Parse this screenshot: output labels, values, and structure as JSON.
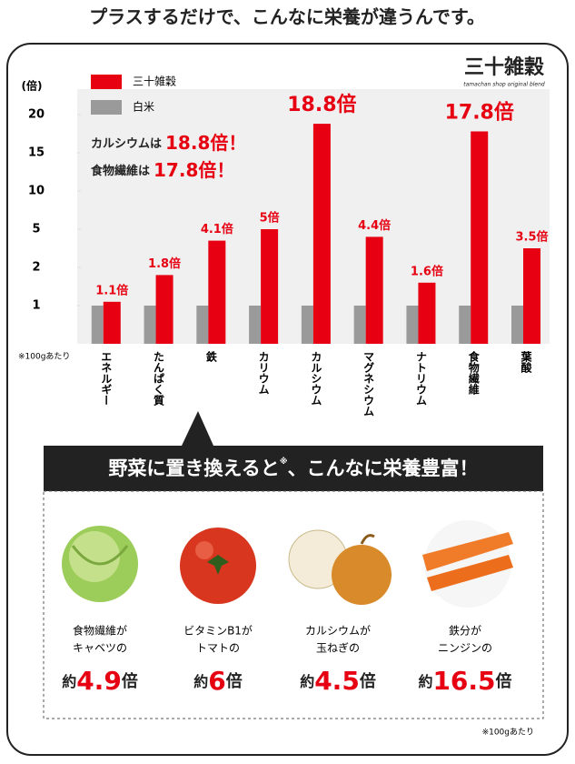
{
  "title": "プラスするだけで、こんなに栄養が違うんです。",
  "logo": {
    "name": "三十雑穀",
    "tagline": "tamachan shop original blend"
  },
  "chart_data": {
    "type": "bar",
    "y_label": "(倍)",
    "categories": [
      "エネルギー",
      "たんぱく質",
      "鉄",
      "カリウム",
      "カルシウム",
      "マグネシウム",
      "ナトリウム",
      "食物繊維",
      "葉酸"
    ],
    "series": [
      {
        "name": "三十雑穀",
        "color": "#e60012",
        "values": [
          1.1,
          1.8,
          4.1,
          5,
          18.8,
          4.4,
          1.6,
          17.8,
          3.5
        ],
        "value_labels": [
          "1.1倍",
          "1.8倍",
          "4.1倍",
          "5倍",
          "18.8倍",
          "4.4倍",
          "1.6倍",
          "17.8倍",
          "3.5倍"
        ]
      },
      {
        "name": "白米",
        "color": "#9a9a9a",
        "values": [
          1,
          1,
          1,
          1,
          1,
          1,
          1,
          1,
          1
        ]
      }
    ],
    "ylim": [
      0,
      20
    ],
    "yticks": [
      1,
      2,
      5,
      10,
      15,
      20
    ],
    "annotations": [
      {
        "lead": "カルシウムは",
        "value": "18.8倍！"
      },
      {
        "lead": "食物繊維は",
        "value": "17.8倍！"
      }
    ],
    "note": "※100gあたり"
  },
  "vegetables": {
    "heading": {
      "text": "野菜に置き換えると",
      "mark": "※",
      "rest": "、こんなに栄養豊富！"
    },
    "items": [
      {
        "line1": "食物繊維が",
        "line2": "キャベツの",
        "prefix": "約",
        "value": "4.9",
        "unit": "倍"
      },
      {
        "line1": "ビタミンB1が",
        "line2": "トマトの",
        "prefix": "約",
        "value": "6",
        "unit": "倍"
      },
      {
        "line1": "カルシウムが",
        "line2": "玉ねぎの",
        "prefix": "約",
        "value": "4.5",
        "unit": "倍"
      },
      {
        "line1": "鉄分が",
        "line2": "ニンジンの",
        "prefix": "約",
        "value": "16.5",
        "unit": "倍"
      }
    ],
    "note": "※100gあたり"
  }
}
